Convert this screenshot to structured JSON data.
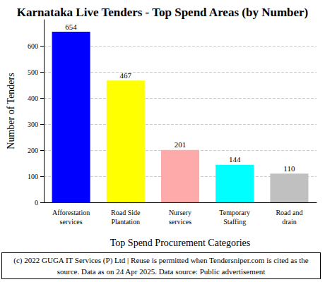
{
  "chart_data": {
    "type": "bar",
    "title": "Karnataka Live Tenders - Top Spend Areas (by Number)",
    "x_label": "Top Spend Procurement Categories",
    "y_label": "Number of Tenders",
    "categories": [
      "Afforestation\nservices",
      "Road Side\nPlantation",
      "Nursery\nservices",
      "Temporary\nStaffing",
      "Road and\ndrain"
    ],
    "values": [
      654,
      467,
      201,
      144,
      110
    ],
    "colors": [
      "#0000ff",
      "#ffff00",
      "#ffaaaa",
      "#00ffff",
      "#c0c0c0"
    ],
    "ylim": [
      0,
      700
    ],
    "yticks": [
      0,
      100,
      200,
      300,
      400,
      500,
      600
    ],
    "grid": true,
    "data_labels": true,
    "footer": "(c) 2022 GUGA IT Services (P) Ltd | Reuse is permitted when Tendersniper.com is cited as the source. Data as on 24 Apr 2025. Data source: Public advertisement"
  }
}
